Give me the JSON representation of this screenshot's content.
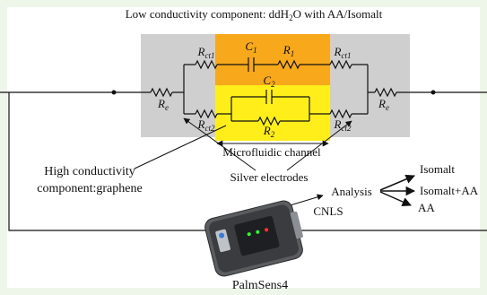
{
  "title": {
    "before": "Low conductivity component: ddH",
    "sub": "2",
    "after": "O with AA/Isomalt"
  },
  "circuit_labels": {
    "c1": {
      "main": "C",
      "sub": "1"
    },
    "r1": {
      "main": "R",
      "sub": "1"
    },
    "rct1_left": {
      "main": "R",
      "sub": "ct1"
    },
    "rct1_right": {
      "main": "R",
      "sub": "ct1"
    },
    "c2": {
      "main": "C",
      "sub": "2"
    },
    "r2": {
      "main": "R",
      "sub": "2"
    },
    "rct2_left": {
      "main": "R",
      "sub": "ct2"
    },
    "rct2_right": {
      "main": "R",
      "sub": "ct2"
    },
    "re_left": {
      "main": "R",
      "sub": "e"
    },
    "re_right": {
      "main": "R",
      "sub": "e"
    }
  },
  "annotations": {
    "channel": "Microfluidic channel",
    "electrodes": "Silver electrodes",
    "high_conductivity": [
      "High conductivity",
      "component:graphene"
    ],
    "analysis": "Analysis",
    "cnls": "CNLS",
    "device": "PalmSens4"
  },
  "outputs": [
    "Isomalt",
    "Isomalt+AA",
    "AA"
  ]
}
